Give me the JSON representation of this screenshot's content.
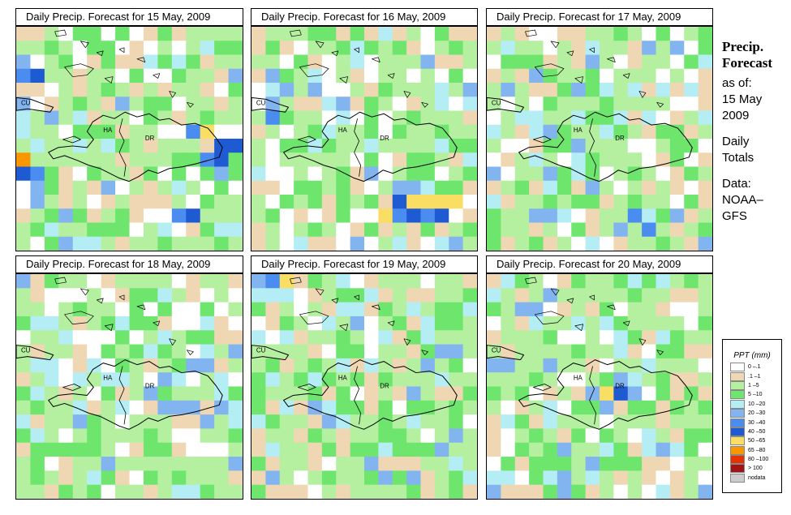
{
  "panels": [
    {
      "title": "Daily Precip. Forecast for  15 May, 2009",
      "date": "15 May, 2009",
      "seed": 11,
      "hotspots": [
        {
          "gx": 13,
          "gy": 7,
          "code": 8
        },
        {
          "gx": 14,
          "gy": 8,
          "code": 7
        },
        {
          "gx": 15,
          "gy": 8,
          "code": 7
        },
        {
          "gx": 14,
          "gy": 9,
          "code": 7
        },
        {
          "gx": 13,
          "gy": 9,
          "code": 6
        },
        {
          "gx": 0,
          "gy": 9,
          "code": 9
        },
        {
          "gx": 0,
          "gy": 10,
          "code": 7
        },
        {
          "gx": 1,
          "gy": 10,
          "code": 6
        },
        {
          "gx": 0,
          "gy": 3,
          "code": 6
        },
        {
          "gx": 1,
          "gy": 3,
          "code": 7
        },
        {
          "gx": 12,
          "gy": 7,
          "code": 6
        },
        {
          "gx": 11,
          "gy": 13,
          "code": 6
        },
        {
          "gx": 12,
          "gy": 13,
          "code": 7
        }
      ]
    },
    {
      "title": "Daily Precip. Forecast for  16 May, 2009",
      "date": "16 May, 2009",
      "seed": 23,
      "hotspots": [
        {
          "gx": 10,
          "gy": 12,
          "code": 7
        },
        {
          "gx": 11,
          "gy": 12,
          "code": 8
        },
        {
          "gx": 12,
          "gy": 12,
          "code": 8
        },
        {
          "gx": 13,
          "gy": 12,
          "code": 8
        },
        {
          "gx": 14,
          "gy": 12,
          "code": 8
        },
        {
          "gx": 9,
          "gy": 13,
          "code": 8
        },
        {
          "gx": 10,
          "gy": 13,
          "code": 6
        },
        {
          "gx": 11,
          "gy": 13,
          "code": 7
        },
        {
          "gx": 12,
          "gy": 13,
          "code": 6
        },
        {
          "gx": 13,
          "gy": 13,
          "code": 7
        },
        {
          "gx": 1,
          "gy": 6,
          "code": 6
        },
        {
          "gx": 1,
          "gy": 3,
          "code": 5
        },
        {
          "gx": 2,
          "gy": 4,
          "code": 5
        }
      ]
    },
    {
      "title": "Daily Precip. Forecast for  17 May, 2009",
      "date": "17 May, 2009",
      "seed": 37,
      "hotspots": [
        {
          "gx": 10,
          "gy": 13,
          "code": 6
        },
        {
          "gx": 11,
          "gy": 14,
          "code": 6
        },
        {
          "gx": 9,
          "gy": 14,
          "code": 5
        },
        {
          "gx": 4,
          "gy": 10,
          "code": 5
        },
        {
          "gx": 1,
          "gy": 4,
          "code": 5
        }
      ]
    },
    {
      "title": "Daily Precip. Forecast for  18 May, 2009",
      "date": "18 May, 2009",
      "seed": 49,
      "hotspots": [
        {
          "gx": 9,
          "gy": 8,
          "code": 5
        },
        {
          "gx": 10,
          "gy": 9,
          "code": 5
        },
        {
          "gx": 12,
          "gy": 9,
          "code": 5
        },
        {
          "gx": 13,
          "gy": 10,
          "code": 5
        },
        {
          "gx": 14,
          "gy": 9,
          "code": 5
        },
        {
          "gx": 0,
          "gy": 0,
          "code": 5
        }
      ]
    },
    {
      "title": "Daily Precip. Forecast for  19 May, 2009",
      "date": "19 May, 2009",
      "seed": 61,
      "hotspots": [
        {
          "gx": 1,
          "gy": 0,
          "code": 6
        },
        {
          "gx": 2,
          "gy": 0,
          "code": 8
        },
        {
          "gx": 0,
          "gy": 0,
          "code": 5
        },
        {
          "gx": 13,
          "gy": 5,
          "code": 5
        },
        {
          "gx": 14,
          "gy": 5,
          "code": 5
        },
        {
          "gx": 12,
          "gy": 6,
          "code": 5
        },
        {
          "gx": 11,
          "gy": 8,
          "code": 5
        }
      ]
    },
    {
      "title": "Daily Precip. Forecast for  20 May, 2009",
      "date": "20 May, 2009",
      "seed": 73,
      "hotspots": [
        {
          "gx": 9,
          "gy": 8,
          "code": 7
        },
        {
          "gx": 8,
          "gy": 8,
          "code": 8
        },
        {
          "gx": 9,
          "gy": 7,
          "code": 5
        },
        {
          "gx": 8,
          "gy": 9,
          "code": 5
        },
        {
          "gx": 7,
          "gy": 8,
          "code": 5
        }
      ]
    }
  ],
  "country_labels": {
    "cuba": "CU",
    "haiti": "HA",
    "dominican_republic": "DR"
  },
  "side_info": {
    "title_line1": "Precip.",
    "title_line2": "Forecast",
    "asof_label": "as of:",
    "asof_day": "15 May",
    "asof_year": "2009",
    "totals_line1": "Daily",
    "totals_line2": "Totals",
    "data_line1": "Data:",
    "data_line2": "NOAA–",
    "data_line3": "GFS"
  },
  "legend": {
    "title": "PPT (mm)",
    "items": [
      {
        "label": "0 –.1",
        "color": "#ffffff"
      },
      {
        "label": ".1 –1",
        "color": "#f0d7b4"
      },
      {
        "label": "1 –5",
        "color": "#b4f0a0"
      },
      {
        "label": "5 –10",
        "color": "#6ee66e"
      },
      {
        "label": "10 –20",
        "color": "#b4eef4"
      },
      {
        "label": "20 –30",
        "color": "#82b4f0"
      },
      {
        "label": "30 –40",
        "color": "#4b8cf0"
      },
      {
        "label": "40 –50",
        "color": "#1e5ad2"
      },
      {
        "label": "50 –65",
        "color": "#fade64"
      },
      {
        "label": "65 –80",
        "color": "#fa9600"
      },
      {
        "label": "80 –100",
        "color": "#e63200"
      },
      {
        "label": "> 100",
        "color": "#a01414"
      },
      {
        "label": "nodata",
        "color": "#cccccc"
      }
    ]
  }
}
